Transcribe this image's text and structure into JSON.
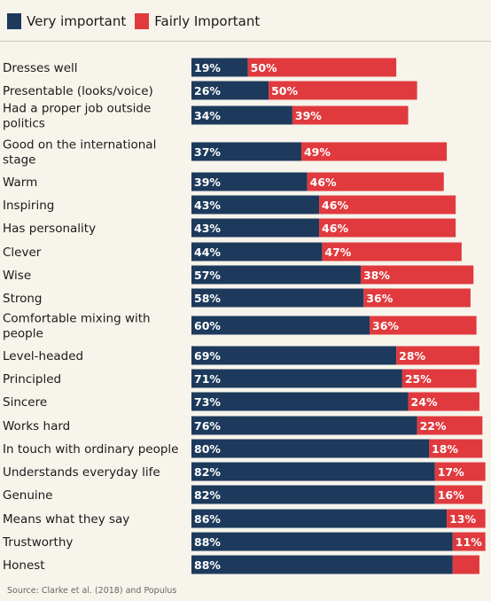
{
  "colors": {
    "very": "#1d3a5c",
    "fairly": "#e03a3e"
  },
  "legend": {
    "very": "Very important",
    "fairly": "Fairly Important"
  },
  "source": "Source: Clarke et al. (2018) and Populus",
  "chart_data": {
    "type": "bar",
    "orientation": "horizontal",
    "stacked": true,
    "categories": [
      [
        "Dresses well"
      ],
      [
        "Presentable (looks/voice)"
      ],
      [
        "Had a proper job outside",
        "politics"
      ],
      [
        "Good on the international",
        "stage"
      ],
      [
        "Warm"
      ],
      [
        "Inspiring"
      ],
      [
        "Has personality"
      ],
      [
        "Clever"
      ],
      [
        "Wise"
      ],
      [
        "Strong"
      ],
      [
        "Comfortable mixing with",
        "people"
      ],
      [
        "Level-headed"
      ],
      [
        "Principled"
      ],
      [
        "Sincere"
      ],
      [
        "Works hard"
      ],
      [
        "In touch with ordinary people"
      ],
      [
        "Understands everyday life"
      ],
      [
        "Genuine"
      ],
      [
        "Means what they say"
      ],
      [
        "Trustworthy"
      ],
      [
        "Honest"
      ]
    ],
    "series": [
      {
        "name": "Very important",
        "values": [
          19,
          26,
          34,
          37,
          39,
          43,
          43,
          44,
          57,
          58,
          60,
          69,
          71,
          73,
          76,
          80,
          82,
          82,
          86,
          88,
          88
        ],
        "labels": [
          "19%",
          "26%",
          "34%",
          "37%",
          "39%",
          "43%",
          "43%",
          "44%",
          "57%",
          "58%",
          "60%",
          "69%",
          "71%",
          "73%",
          "76%",
          "80%",
          "82%",
          "82%",
          "86%",
          "88%",
          "88%"
        ]
      },
      {
        "name": "Fairly Important",
        "values": [
          50,
          50,
          39,
          49,
          46,
          46,
          46,
          47,
          38,
          36,
          36,
          28,
          25,
          24,
          22,
          18,
          17,
          16,
          13,
          11,
          9
        ],
        "labels": [
          "50%",
          "50%",
          "39%",
          "49%",
          "46%",
          "46%",
          "46%",
          "47%",
          "38%",
          "36%",
          "36%",
          "28%",
          "25%",
          "24%",
          "22%",
          "18%",
          "17%",
          "16%",
          "13%",
          "11%",
          ""
        ]
      }
    ],
    "xlim": [
      0,
      100
    ]
  }
}
